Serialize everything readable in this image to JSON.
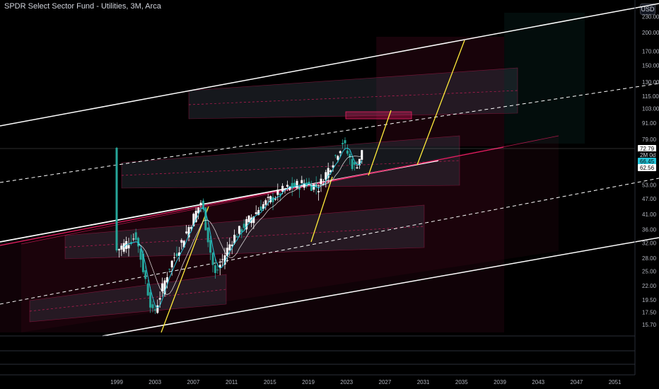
{
  "header": {
    "symbol_title": "SPDR Select Sector Fund - Utilities, 3M, Arca",
    "currency": "USD"
  },
  "chart_data": {
    "type": "candlestick",
    "x_axis_ticks": [
      "1999",
      "2003",
      "2007",
      "2011",
      "2015",
      "2019",
      "2023",
      "2027",
      "2031",
      "2035",
      "2039",
      "2043",
      "2047",
      "2051"
    ],
    "y_axis_scale": "log",
    "y_axis_ticks": [
      230.0,
      200.0,
      170.0,
      150.0,
      130.0,
      115.0,
      103.0,
      91.0,
      79.0,
      70.0,
      62.0,
      53.0,
      47.0,
      41.0,
      36.0,
      32.0,
      28.0,
      25.0,
      22.0,
      19.5,
      17.5,
      15.7
    ],
    "y_axis_ticks_labels": [
      "230.00",
      "200.00",
      "170.00",
      "150.00",
      "130.00",
      "115.00",
      "103.00",
      "91.00",
      "79.00",
      "70.00",
      "62.00",
      "53.00",
      "47.00",
      "41.00",
      "36.00",
      "32.00",
      "28.00",
      "25.00",
      "22.00",
      "19.50",
      "17.50",
      "15.70"
    ],
    "price_labels": [
      {
        "text": "72.79",
        "role": "last-price",
        "color": "#ffffff",
        "bg": "#ffffff"
      },
      {
        "text": "2M 0d",
        "role": "countdown",
        "color": "#ffffff"
      },
      {
        "text": "66.45",
        "role": "moving-average",
        "color": "#26c6da"
      },
      {
        "text": "62.56",
        "role": "moving-average",
        "color": "#ffffff"
      }
    ],
    "series_price_approx": [
      {
        "year": 1999.0,
        "close": 30
      },
      {
        "year": 2001.0,
        "close": 34
      },
      {
        "year": 2002.8,
        "close": 17
      },
      {
        "year": 2004.5,
        "close": 26
      },
      {
        "year": 2007.8,
        "close": 46
      },
      {
        "year": 2009.2,
        "close": 24
      },
      {
        "year": 2011.0,
        "close": 33
      },
      {
        "year": 2014.0,
        "close": 44
      },
      {
        "year": 2016.5,
        "close": 51
      },
      {
        "year": 2018.5,
        "close": 54
      },
      {
        "year": 2020.0,
        "close": 52
      },
      {
        "year": 2022.5,
        "close": 77
      },
      {
        "year": 2023.7,
        "close": 61
      },
      {
        "year": 2024.7,
        "close": 72.79
      }
    ],
    "colors": {
      "up": "#ffffff",
      "down": "#26a69a",
      "channel_outer": "#ffffff",
      "channel_pink": "#e91e63",
      "projection": "#ffeb3b",
      "ma_cyan": "#26c6da"
    },
    "grid": false
  }
}
